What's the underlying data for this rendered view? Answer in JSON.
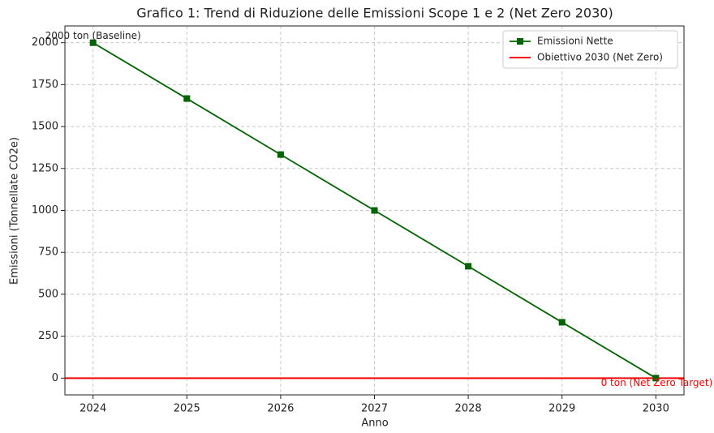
{
  "chart_data": {
    "type": "line",
    "title": "Grafico 1: Trend di Riduzione delle Emissioni Scope 1 e 2 (Net Zero 2030)",
    "x_label": "Anno",
    "y_label": "Emissioni (Tonnellate CO2e)",
    "x": [
      2024,
      2025,
      2026,
      2027,
      2028,
      2029,
      2030
    ],
    "series": [
      {
        "name": "Emissioni Nette",
        "color": "#006400",
        "marker": "square",
        "values": [
          2000,
          1667,
          1333,
          1000,
          667,
          333,
          0
        ]
      }
    ],
    "target": {
      "name": "Obiettivo 2030 (Net Zero)",
      "color": "#ff0000",
      "value": 0
    },
    "annotations": [
      {
        "text": "2000 ton (Baseline)",
        "color": "#222222"
      },
      {
        "text": "0 ton (Net Zero Target)",
        "color": "#ff0000"
      }
    ],
    "xlim": [
      2023.7,
      2030.3
    ],
    "ylim": [
      -100,
      2100
    ],
    "xticks": [
      2024,
      2025,
      2026,
      2027,
      2028,
      2029,
      2030
    ],
    "yticks": [
      0,
      250,
      500,
      750,
      1000,
      1250,
      1500,
      1750,
      2000
    ],
    "grid": true,
    "legend": "upper right"
  }
}
